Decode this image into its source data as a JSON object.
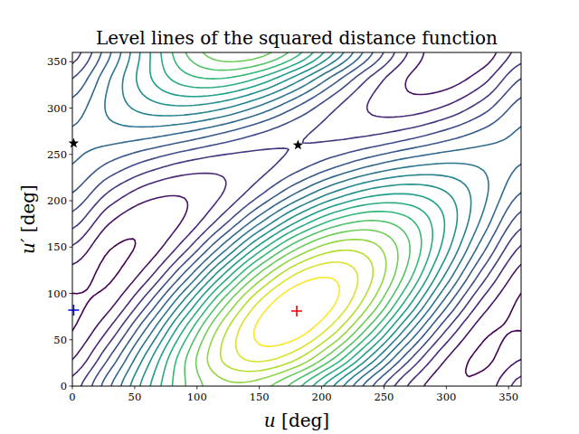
{
  "chart_data": {
    "type": "contour",
    "title": "Level lines of the squared distance function",
    "x_label": "u [deg]",
    "y_label": "u′ [deg]",
    "xlim": [
      0,
      360
    ],
    "ylim": [
      0,
      360
    ],
    "xticks": [
      0,
      50,
      100,
      150,
      200,
      250,
      300,
      350
    ],
    "yticks": [
      0,
      50,
      100,
      150,
      200,
      250,
      300,
      350
    ],
    "x": [
      0,
      30,
      60,
      90,
      120,
      150,
      180,
      210,
      240,
      270,
      300,
      330,
      360
    ],
    "y": [
      0,
      30,
      60,
      90,
      120,
      150,
      180,
      210,
      240,
      270,
      300,
      330,
      360
    ],
    "z": [
      [
        0.861,
        1.717,
        2.676,
        3.483,
        3.92,
        3.87,
        3.347,
        2.491,
        1.532,
        0.725,
        0.288,
        0.338,
        0.861
      ],
      [
        0.486,
        1.277,
        2.365,
        3.458,
        4.265,
        4.568,
        4.286,
        3.495,
        2.407,
        1.314,
        0.507,
        0.204,
        0.486
      ],
      [
        0.248,
        0.798,
        1.821,
        3.043,
        4.136,
        4.809,
        4.88,
        4.33,
        3.307,
        2.085,
        0.992,
        0.319,
        0.248
      ],
      [
        0.212,
        0.409,
        1.191,
        2.348,
        3.57,
        4.529,
        4.97,
        4.773,
        3.991,
        2.834,
        1.612,
        0.653,
        0.212
      ],
      [
        0.388,
        0.215,
        0.644,
        1.56,
        2.717,
        3.805,
        4.532,
        4.705,
        4.276,
        3.36,
        2.203,
        1.115,
        0.388
      ],
      [
        0.726,
        0.267,
        0.326,
        0.889,
        1.805,
        2.828,
        3.684,
        4.143,
        4.084,
        3.521,
        2.605,
        1.582,
        0.726
      ],
      [
        1.139,
        0.551,
        0.324,
        0.517,
        1.08,
        1.862,
        2.653,
        3.241,
        3.468,
        3.275,
        2.712,
        1.93,
        1.139
      ],
      [
        1.514,
        0.991,
        0.635,
        0.542,
        0.735,
        1.164,
        1.714,
        2.237,
        2.593,
        2.686,
        2.493,
        2.064,
        1.514
      ],
      [
        1.752,
        1.47,
        1.179,
        0.957,
        0.864,
        0.923,
        1.12,
        1.402,
        1.693,
        1.915,
        2.008,
        1.949,
        1.752
      ],
      [
        1.788,
        1.859,
        1.809,
        1.652,
        1.43,
        1.203,
        1.03,
        0.959,
        1.009,
        1.166,
        1.388,
        1.615,
        1.788
      ],
      [
        1.612,
        2.053,
        2.356,
        2.44,
        2.283,
        1.927,
        1.468,
        1.027,
        0.724,
        0.64,
        0.797,
        1.153,
        1.612
      ],
      [
        1.274,
        2.001,
        2.674,
        3.111,
        3.195,
        2.904,
        2.316,
        1.589,
        0.916,
        0.479,
        0.395,
        0.686,
        1.274
      ],
      [
        0.861,
        1.717,
        2.676,
        3.483,
        3.92,
        3.87,
        3.347,
        2.491,
        1.532,
        0.725,
        0.288,
        0.338,
        0.861
      ]
    ],
    "levels": [
      0.25,
      0.5,
      0.75,
      1.0,
      1.25,
      1.5,
      1.75,
      2.0,
      2.25,
      2.5,
      2.75,
      3.0,
      3.25,
      3.5,
      3.75,
      4.0,
      4.25,
      4.5,
      4.75
    ],
    "series": [
      {
        "type": "scatter",
        "marker": "plus",
        "color": "#ff0000",
        "x": [
          180
        ],
        "values": [
          81
        ]
      },
      {
        "type": "scatter",
        "marker": "plus",
        "color": "#0000ff",
        "x": [
          1
        ],
        "values": [
          82
        ]
      },
      {
        "type": "scatter",
        "marker": "star",
        "color": "#000000",
        "x": [
          1,
          181
        ],
        "values": [
          262,
          260
        ]
      }
    ]
  }
}
